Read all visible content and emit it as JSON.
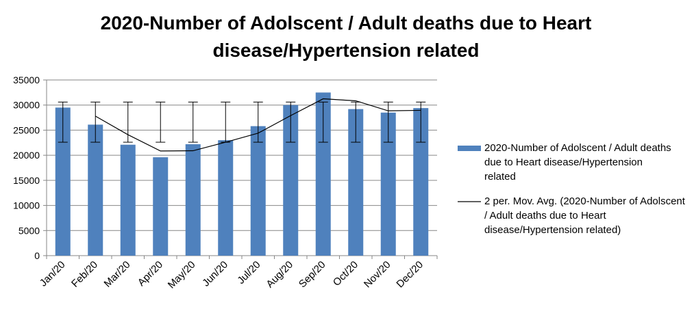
{
  "chart_data": {
    "type": "bar",
    "title": "2020-Number of Adolscent / Adult deaths due to Heart disease/Hypertension related",
    "categories": [
      "Jan/20",
      "Feb/20",
      "Mar/20",
      "Apr/20",
      "May/20",
      "Jun/20",
      "Jul/20",
      "Aug/20",
      "Sep/20",
      "Oct/20",
      "Nov/20",
      "Dec/20"
    ],
    "series": [
      {
        "name": "2020-Number of Adolscent / Adult deaths due to Heart disease/Hypertension related",
        "color": "#4f81bd",
        "values": [
          29500,
          26100,
          22100,
          19600,
          22200,
          23000,
          25800,
          30000,
          32500,
          29200,
          28500,
          29400
        ]
      },
      {
        "name": "2 per. Mov. Avg. (2020-Number of Adolscent / Adult deaths due to Heart disease/Hypertension related)",
        "color": "#000000",
        "type": "line",
        "values": [
          null,
          27800,
          24100,
          20850,
          20900,
          22600,
          24400,
          27900,
          31250,
          30850,
          28850,
          28950
        ]
      }
    ],
    "error_bar": {
      "center": 26600,
      "error": 4000
    },
    "ylim": [
      0,
      35000
    ],
    "yticks": [
      0,
      5000,
      10000,
      15000,
      20000,
      25000,
      30000,
      35000
    ],
    "grid": true
  }
}
